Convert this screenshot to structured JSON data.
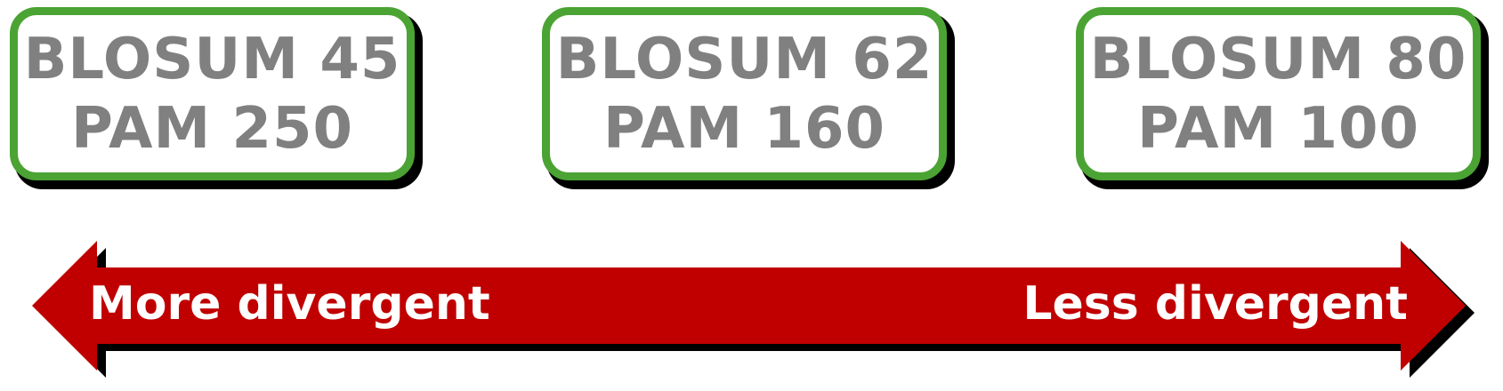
{
  "boxes": [
    {
      "blosum": "BLOSUM 45",
      "pam": "PAM 250"
    },
    {
      "blosum": "BLOSUM 62",
      "pam": "PAM 160"
    },
    {
      "blosum": "BLOSUM 80",
      "pam": "PAM 100"
    }
  ],
  "arrow": {
    "left_label": "More divergent",
    "right_label": "Less divergent"
  },
  "colors": {
    "box_border": "#4ba334",
    "box_text": "#808080",
    "arrow_fill": "#c00000",
    "shadow": "#000000",
    "label_text": "#ffffff"
  }
}
